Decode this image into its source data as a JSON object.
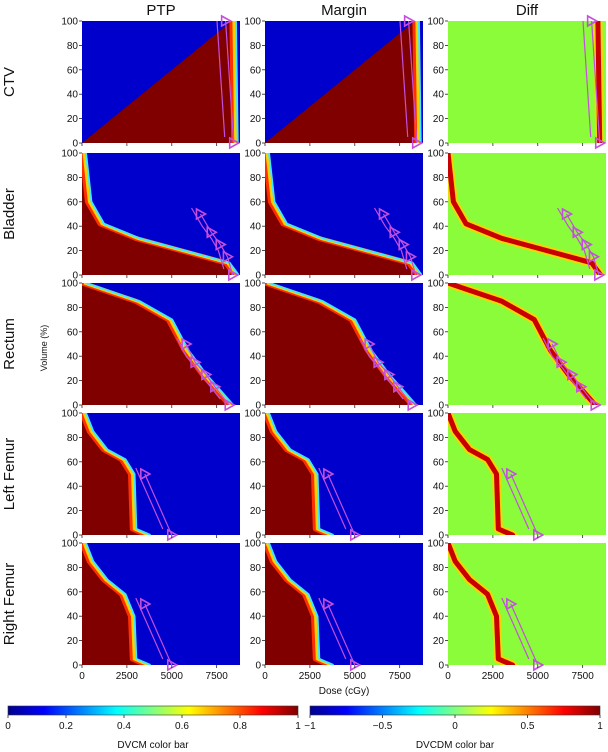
{
  "chart_data": {
    "type": "heatmap",
    "columns": [
      "PTP",
      "Margin",
      "Diff"
    ],
    "rows": [
      "CTV",
      "Bladder",
      "Rectum",
      "Left Femur",
      "Right Femur"
    ],
    "xlabel": "Dose (cGy)",
    "ylabel": "Volume (%)",
    "x_ticks": [
      "0",
      "2500",
      "5000",
      "7500"
    ],
    "x_tick_values": [
      0,
      2500,
      5000,
      7500
    ],
    "y_ticks": [
      "0",
      "20",
      "40",
      "60",
      "80",
      "100"
    ],
    "y_tick_values": [
      0,
      20,
      40,
      60,
      80,
      100
    ],
    "xlim": [
      0,
      8800
    ],
    "ylim": [
      0,
      100
    ],
    "colorbars": [
      {
        "label": "DVCM color bar",
        "ticks": [
          "0",
          "0.2",
          "0.4",
          "0.6",
          "0.8",
          "1"
        ],
        "range": [
          0,
          1
        ]
      },
      {
        "label": "DVCDM color bar",
        "ticks": [
          "−1",
          "−0.5",
          "0",
          "0.5",
          "1"
        ],
        "range": [
          -1,
          1
        ]
      }
    ],
    "colors": {
      "high": "#800000",
      "low": "#0000cc",
      "zero_diff": "#8bfc3a",
      "constraint": "#c44fdc"
    },
    "curves": {
      "CTV": [
        [
          8350,
          100
        ],
        [
          8400,
          50
        ],
        [
          8450,
          0
        ]
      ],
      "Bladder": [
        [
          0,
          100
        ],
        [
          300,
          60
        ],
        [
          1000,
          42
        ],
        [
          3000,
          30
        ],
        [
          6000,
          18
        ],
        [
          8000,
          10
        ],
        [
          8500,
          0
        ]
      ],
      "Rectum": [
        [
          0,
          100
        ],
        [
          1000,
          95
        ],
        [
          3000,
          85
        ],
        [
          4800,
          70
        ],
        [
          5700,
          45
        ],
        [
          6700,
          25
        ],
        [
          7600,
          10
        ],
        [
          8200,
          0
        ]
      ],
      "Left Femur": [
        [
          0,
          100
        ],
        [
          400,
          85
        ],
        [
          1200,
          70
        ],
        [
          2200,
          62
        ],
        [
          2700,
          50
        ],
        [
          2800,
          5
        ],
        [
          3100,
          3
        ],
        [
          3600,
          0
        ]
      ],
      "Right Femur": [
        [
          0,
          100
        ],
        [
          400,
          85
        ],
        [
          1200,
          70
        ],
        [
          2200,
          58
        ],
        [
          2700,
          40
        ],
        [
          2800,
          5
        ],
        [
          3100,
          3
        ],
        [
          3600,
          0
        ]
      ]
    },
    "constraints": {
      "CTV": [
        [
          8000,
          100
        ],
        [
          8450,
          0
        ]
      ],
      "Bladder": [
        [
          6600,
          50
        ],
        [
          7200,
          35
        ],
        [
          7700,
          25
        ],
        [
          8100,
          15
        ],
        [
          8400,
          0
        ]
      ],
      "Rectum": [
        [
          5800,
          50
        ],
        [
          6300,
          35
        ],
        [
          6900,
          25
        ],
        [
          7400,
          15
        ],
        [
          8200,
          0
        ]
      ],
      "Left Femur": [
        [
          3500,
          50
        ],
        [
          5000,
          0
        ]
      ],
      "Right Femur": [
        [
          3500,
          50
        ],
        [
          5000,
          0
        ]
      ]
    }
  }
}
